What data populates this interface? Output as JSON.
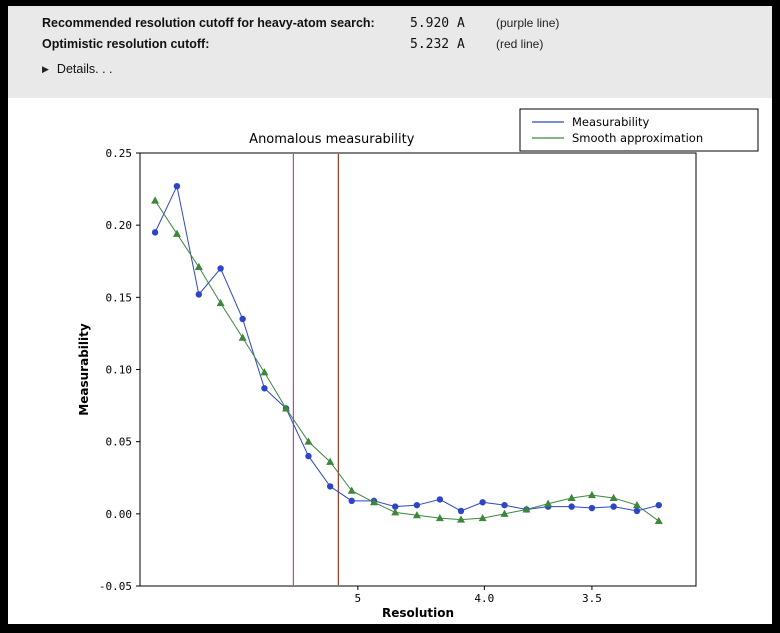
{
  "header": {
    "rows": [
      {
        "label": "Recommended resolution cutoff for heavy-atom search:",
        "value": "5.920 A",
        "note": "(purple line)"
      },
      {
        "label": "Optimistic resolution cutoff:",
        "value": "5.232 A",
        "note": "(red line)"
      }
    ],
    "details_label": "Details. . ."
  },
  "chart_data": {
    "type": "line",
    "title": "Anomalous measurability",
    "xlabel": "Resolution",
    "ylabel": "Measurability",
    "x_scale": "one_over_d_squared",
    "x_axis_reversed_resolution": true,
    "xlim_d": [
      28.3,
      3.16
    ],
    "ylim": [
      -0.05,
      0.25
    ],
    "yticks": [
      -0.05,
      0.0,
      0.05,
      0.1,
      0.15,
      0.2,
      0.25
    ],
    "ytick_labels": [
      "-0.05",
      "0.00",
      "0.05",
      "0.10",
      "0.15",
      "0.20",
      "0.25"
    ],
    "xticks_d": [
      5,
      4.0,
      3.5
    ],
    "xtick_labels": [
      "5",
      "4.0",
      "3.5"
    ],
    "grid": false,
    "legend_position": "top-right-outside",
    "resolution_d": [
      15.95,
      11.31,
      9.24,
      8.01,
      7.16,
      6.54,
      6.06,
      5.66,
      5.34,
      5.07,
      4.83,
      4.63,
      4.45,
      4.28,
      4.14,
      4.01,
      3.89,
      3.78,
      3.68,
      3.58,
      3.5,
      3.42,
      3.34,
      3.27
    ],
    "series": [
      {
        "name": "Measurability",
        "color": "#2e45c8",
        "marker": "circle",
        "values": [
          0.195,
          0.227,
          0.152,
          0.17,
          0.135,
          0.087,
          0.073,
          0.04,
          0.019,
          0.009,
          0.009,
          0.005,
          0.006,
          0.01,
          0.002,
          0.008,
          0.006,
          0.003,
          0.005,
          0.005,
          0.004,
          0.005,
          0.002,
          0.006
        ]
      },
      {
        "name": "Smooth approximation",
        "color": "#3c873c",
        "marker": "triangle",
        "values": [
          0.217,
          0.194,
          0.171,
          0.146,
          0.122,
          0.098,
          0.073,
          0.05,
          0.036,
          0.016,
          0.008,
          0.001,
          -0.001,
          -0.003,
          -0.004,
          -0.003,
          0.0,
          0.003,
          0.007,
          0.011,
          0.013,
          0.011,
          0.006,
          -0.005
        ]
      }
    ],
    "vlines": [
      {
        "name": "purple line",
        "d": 5.92,
        "color": "#bb44bb"
      },
      {
        "name": "red line",
        "d": 5.232,
        "color": "#993922"
      }
    ]
  }
}
